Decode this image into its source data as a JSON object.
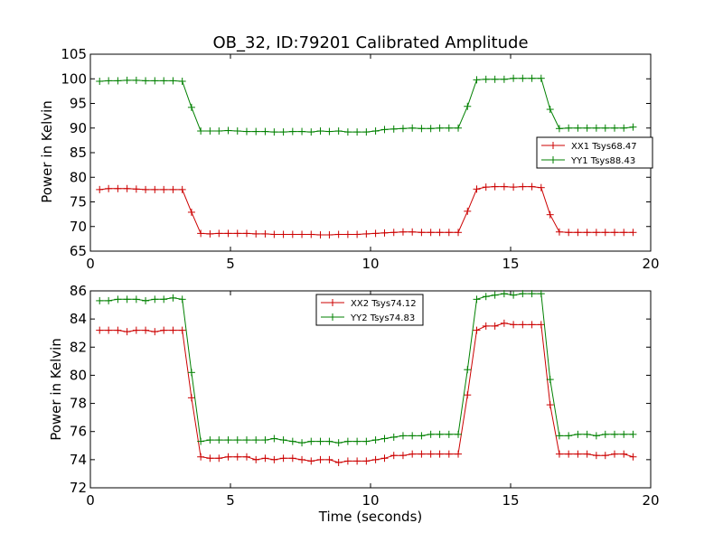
{
  "chart_data": [
    {
      "type": "line",
      "title": "OB_32, ID:79201 Calibrated Amplitude",
      "xlabel": "",
      "ylabel": "Power in Kelvin",
      "xlim": [
        0,
        20
      ],
      "ylim": [
        65,
        105
      ],
      "xticks": [
        "0",
        "5",
        "10",
        "15",
        "20"
      ],
      "yticks": [
        "65",
        "70",
        "75",
        "80",
        "85",
        "90",
        "95",
        "100",
        "105"
      ],
      "legend": "center-right",
      "x": [
        0.33,
        0.65,
        0.98,
        1.31,
        1.64,
        1.97,
        2.3,
        2.62,
        2.95,
        3.28,
        3.61,
        3.94,
        4.27,
        4.59,
        4.92,
        5.25,
        5.58,
        5.91,
        6.24,
        6.56,
        6.89,
        7.22,
        7.55,
        7.88,
        8.21,
        8.53,
        8.86,
        9.19,
        9.52,
        9.85,
        10.18,
        10.5,
        10.83,
        11.16,
        11.49,
        11.82,
        12.15,
        12.47,
        12.8,
        13.13,
        13.46,
        13.79,
        14.12,
        14.44,
        14.77,
        15.1,
        15.43,
        15.76,
        16.09,
        16.41,
        16.74,
        17.07,
        17.4,
        17.73,
        18.06,
        18.38,
        18.71,
        19.04,
        19.37
      ],
      "series": [
        {
          "name": "XX1 Tsys68.47",
          "color": "#cc0000",
          "values": [
            77.5,
            77.7,
            77.7,
            77.7,
            77.6,
            77.5,
            77.5,
            77.5,
            77.5,
            77.5,
            72.9,
            68.6,
            68.5,
            68.6,
            68.6,
            68.6,
            68.6,
            68.5,
            68.5,
            68.4,
            68.4,
            68.4,
            68.4,
            68.4,
            68.3,
            68.3,
            68.4,
            68.4,
            68.4,
            68.5,
            68.6,
            68.7,
            68.8,
            68.9,
            68.9,
            68.8,
            68.8,
            68.8,
            68.8,
            68.8,
            73.1,
            77.6,
            78.0,
            78.1,
            78.1,
            78.0,
            78.1,
            78.1,
            77.9,
            72.4,
            68.9,
            68.8,
            68.8,
            68.8,
            68.8,
            68.8,
            68.8,
            68.8,
            68.8
          ]
        },
        {
          "name": "YY1 Tsys88.43",
          "color": "#008000",
          "values": [
            99.5,
            99.6,
            99.6,
            99.7,
            99.7,
            99.6,
            99.6,
            99.6,
            99.6,
            99.5,
            94.2,
            89.4,
            89.4,
            89.4,
            89.5,
            89.4,
            89.3,
            89.3,
            89.3,
            89.2,
            89.2,
            89.3,
            89.3,
            89.2,
            89.4,
            89.3,
            89.4,
            89.2,
            89.2,
            89.2,
            89.4,
            89.7,
            89.8,
            89.9,
            90.0,
            89.9,
            89.9,
            90.0,
            90.0,
            90.0,
            94.4,
            99.8,
            99.9,
            99.9,
            99.9,
            100.1,
            100.1,
            100.1,
            100.1,
            93.8,
            89.9,
            90.0,
            90.0,
            90.0,
            90.0,
            90.0,
            90.0,
            90.0,
            90.2
          ]
        }
      ]
    },
    {
      "type": "line",
      "title": "",
      "xlabel": "Time (seconds)",
      "ylabel": "Power in Kelvin",
      "xlim": [
        0,
        20
      ],
      "ylim": [
        72,
        86
      ],
      "xticks": [
        "0",
        "5",
        "10",
        "15",
        "20"
      ],
      "yticks": [
        "72",
        "74",
        "76",
        "78",
        "80",
        "82",
        "84",
        "86"
      ],
      "legend": "upper-center",
      "x": [
        0.33,
        0.65,
        0.98,
        1.31,
        1.64,
        1.97,
        2.3,
        2.62,
        2.95,
        3.28,
        3.61,
        3.94,
        4.27,
        4.59,
        4.92,
        5.25,
        5.58,
        5.91,
        6.24,
        6.56,
        6.89,
        7.22,
        7.55,
        7.88,
        8.21,
        8.53,
        8.86,
        9.19,
        9.52,
        9.85,
        10.18,
        10.5,
        10.83,
        11.16,
        11.49,
        11.82,
        12.15,
        12.47,
        12.8,
        13.13,
        13.46,
        13.79,
        14.12,
        14.44,
        14.77,
        15.1,
        15.43,
        15.76,
        16.09,
        16.41,
        16.74,
        17.07,
        17.4,
        17.73,
        18.06,
        18.38,
        18.71,
        19.04,
        19.37
      ],
      "series": [
        {
          "name": "XX2 Tsys74.12",
          "color": "#cc0000",
          "values": [
            83.2,
            83.2,
            83.2,
            83.1,
            83.2,
            83.2,
            83.1,
            83.2,
            83.2,
            83.2,
            78.4,
            74.2,
            74.1,
            74.1,
            74.2,
            74.2,
            74.2,
            74.0,
            74.1,
            74.0,
            74.1,
            74.1,
            74.0,
            73.9,
            74.0,
            74.0,
            73.8,
            73.9,
            73.9,
            73.9,
            74.0,
            74.1,
            74.3,
            74.3,
            74.4,
            74.4,
            74.4,
            74.4,
            74.4,
            74.4,
            78.6,
            83.2,
            83.5,
            83.5,
            83.7,
            83.6,
            83.6,
            83.6,
            83.6,
            77.9,
            74.4,
            74.4,
            74.4,
            74.4,
            74.3,
            74.3,
            74.4,
            74.4,
            74.2
          ]
        },
        {
          "name": "YY2 Tsys74.83",
          "color": "#008000",
          "values": [
            85.3,
            85.3,
            85.4,
            85.4,
            85.4,
            85.3,
            85.4,
            85.4,
            85.5,
            85.4,
            80.2,
            75.3,
            75.4,
            75.4,
            75.4,
            75.4,
            75.4,
            75.4,
            75.4,
            75.5,
            75.4,
            75.3,
            75.2,
            75.3,
            75.3,
            75.3,
            75.2,
            75.3,
            75.3,
            75.3,
            75.4,
            75.5,
            75.6,
            75.7,
            75.7,
            75.7,
            75.8,
            75.8,
            75.8,
            75.8,
            80.4,
            85.4,
            85.6,
            85.7,
            85.8,
            85.7,
            85.8,
            85.8,
            85.8,
            79.7,
            75.7,
            75.7,
            75.8,
            75.8,
            75.7,
            75.8,
            75.8,
            75.8,
            75.8
          ]
        }
      ]
    }
  ]
}
